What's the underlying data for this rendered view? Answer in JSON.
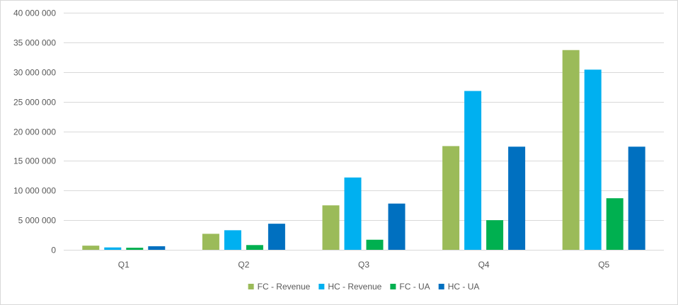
{
  "chart_data": {
    "type": "bar",
    "title": "",
    "xlabel": "",
    "ylabel": "",
    "categories": [
      "Q1",
      "Q2",
      "Q3",
      "Q4",
      "Q5"
    ],
    "ylim": [
      0,
      40000000
    ],
    "yticks": [
      0,
      5000000,
      10000000,
      15000000,
      20000000,
      25000000,
      30000000,
      35000000,
      40000000
    ],
    "ytick_labels": [
      "0",
      "5 000 000",
      "10 000 000",
      "15 000 000",
      "20 000 000",
      "25 000 000",
      "30 000 000",
      "35 000 000",
      "40 000 000"
    ],
    "grid": true,
    "legend_position": "bottom",
    "series": [
      {
        "name": "FC - Revenue",
        "color": "#9bbb59",
        "values": [
          700000,
          2700000,
          7500000,
          17500000,
          33700000
        ]
      },
      {
        "name": "HC - Revenue",
        "color": "#00b0f0",
        "values": [
          400000,
          3300000,
          12200000,
          26800000,
          30400000
        ]
      },
      {
        "name": "FC - UA",
        "color": "#00b050",
        "values": [
          350000,
          800000,
          1700000,
          5000000,
          8700000
        ]
      },
      {
        "name": "HC - UA",
        "color": "#0070c0",
        "values": [
          600000,
          4400000,
          7800000,
          17400000,
          17400000
        ]
      }
    ]
  }
}
